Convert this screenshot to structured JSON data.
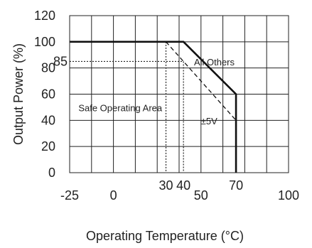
{
  "chart_data": {
    "type": "line",
    "xlabel": "Operating Temperature (°C)",
    "ylabel": "Output Power (%)",
    "x_ticks": [
      "-25",
      "0",
      "50",
      "100"
    ],
    "x_ticks_raised": [
      "30",
      "40",
      "70"
    ],
    "y_ticks": [
      "0",
      "20",
      "40",
      "60",
      "80",
      "100",
      "120"
    ],
    "y_extra_tick": "85",
    "xlim": [
      -25,
      100
    ],
    "ylim": [
      0,
      120
    ],
    "grid": true,
    "series": [
      {
        "name": "All Others",
        "style": "solid",
        "points": [
          [
            -25,
            100
          ],
          [
            40,
            100
          ],
          [
            70,
            60
          ],
          [
            70,
            0
          ]
        ]
      },
      {
        "name": "±5V",
        "style": "dashed",
        "points": [
          [
            30,
            100
          ],
          [
            70,
            40
          ],
          [
            70,
            0
          ]
        ]
      }
    ],
    "reference_lines": [
      {
        "style": "dotted",
        "points": [
          [
            -25,
            85
          ],
          [
            40,
            85
          ]
        ]
      },
      {
        "style": "dotted",
        "points": [
          [
            30,
            100
          ],
          [
            30,
            0
          ]
        ]
      },
      {
        "style": "dotted",
        "points": [
          [
            40,
            85
          ],
          [
            40,
            0
          ]
        ]
      }
    ],
    "annotations": [
      {
        "text": "Safe Operating Area",
        "x": -20,
        "y": 47
      },
      {
        "text": "All Others",
        "x": 46,
        "y": 82
      },
      {
        "text": "±5V",
        "x": 50,
        "y": 37
      }
    ]
  }
}
